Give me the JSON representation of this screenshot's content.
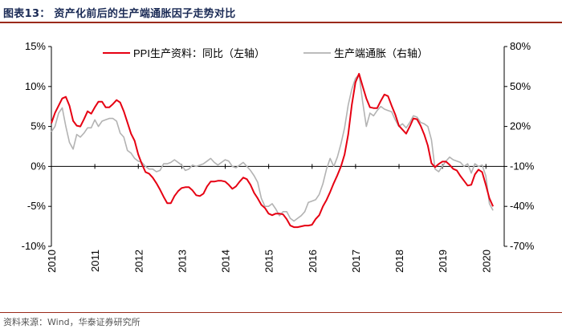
{
  "header": {
    "title": "图表13：  资产化前后的生产端通胀因子走势对比"
  },
  "footer": {
    "source": "资料来源：Wind，华泰证券研究所"
  },
  "colors": {
    "ppi": "#e60012",
    "factor": "#b3b3b3",
    "axis": "#000000",
    "title": "#1a2a55",
    "rule": "#9a2a1a"
  },
  "chart_data": {
    "type": "line",
    "title": "",
    "xlabel": "",
    "ylabel": "",
    "x_start": 2010.0,
    "x_step": 0.0833,
    "xlim": [
      2010.0,
      2020.42
    ],
    "x_ticks": [
      "2010",
      "2011",
      "2012",
      "2013",
      "2014",
      "2015",
      "2016",
      "2017",
      "2018",
      "2019",
      "2020"
    ],
    "left_axis": {
      "ylim": [
        -10,
        15
      ],
      "ticks": [
        "-10%",
        "-5%",
        "0%",
        "5%",
        "10%",
        "15%"
      ]
    },
    "right_axis": {
      "ylim": [
        -70,
        80
      ],
      "ticks": [
        "-70%",
        "-40%",
        "-10%",
        "20%",
        "50%",
        "80%"
      ]
    },
    "legend": "top-center",
    "series": [
      {
        "name": "PPI生产资料：同比（左轴）",
        "axis": "left",
        "values": [
          5.4,
          6.7,
          7.6,
          8.5,
          8.7,
          7.6,
          5.7,
          5.1,
          5.0,
          5.9,
          6.9,
          6.6,
          7.4,
          8.1,
          8.1,
          7.4,
          7.4,
          7.8,
          8.3,
          8.0,
          6.9,
          5.5,
          4.1,
          3.2,
          1.5,
          0.3,
          -0.7,
          -0.9,
          -1.4,
          -2.1,
          -2.9,
          -3.8,
          -4.6,
          -4.6,
          -3.7,
          -3.1,
          -2.7,
          -2.6,
          -2.6,
          -3.0,
          -3.6,
          -3.7,
          -3.4,
          -2.5,
          -1.9,
          -1.9,
          -1.8,
          -1.8,
          -1.9,
          -2.3,
          -2.8,
          -2.5,
          -1.9,
          -1.4,
          -1.6,
          -2.3,
          -3.3,
          -4.0,
          -4.8,
          -5.2,
          -5.9,
          -6.1,
          -5.9,
          -5.9,
          -6.0,
          -6.6,
          -7.4,
          -7.6,
          -7.6,
          -7.5,
          -7.4,
          -7.4,
          -7.3,
          -6.6,
          -6.1,
          -5.0,
          -4.2,
          -3.2,
          -2.1,
          -1.1,
          0.0,
          1.5,
          4.0,
          7.7,
          10.5,
          11.6,
          10.0,
          8.5,
          7.4,
          7.3,
          7.3,
          8.2,
          9.0,
          8.8,
          7.6,
          6.5,
          5.1,
          4.6,
          4.1,
          5.0,
          6.0,
          5.9,
          5.1,
          4.0,
          2.6,
          0.4,
          -0.1,
          0.3,
          0.6,
          0.6,
          0.2,
          -0.3,
          -0.5,
          -1.2,
          -1.8,
          -2.4,
          -2.3,
          -1.0,
          -0.4,
          -0.7,
          -2.3,
          -4.0,
          -5.0
        ]
      },
      {
        "name": "生产端通胀（右轴）",
        "axis": "right",
        "values": [
          16,
          20,
          30,
          34,
          20,
          8,
          3,
          14,
          12,
          15,
          19,
          19,
          25,
          20,
          24,
          25,
          26,
          26,
          24,
          15,
          12,
          2,
          0,
          -4,
          -6,
          -7,
          -10,
          -12,
          -12,
          -14,
          -13,
          -8,
          -8,
          -7,
          -5,
          -7,
          -9,
          -13,
          -12,
          -9,
          -10,
          -9,
          -8,
          -6,
          -4,
          -7,
          -9,
          -7,
          -5,
          -6,
          -10,
          -11,
          -9,
          -7,
          -10,
          -13,
          -17,
          -22,
          -34,
          -40,
          -40,
          -38,
          -42,
          -47,
          -44,
          -44,
          -49,
          -51,
          -49,
          -47,
          -44,
          -37,
          -36,
          -35,
          -31,
          -23,
          -12,
          -4,
          -10,
          -3,
          7,
          19,
          36,
          48,
          56,
          59,
          38,
          20,
          30,
          28,
          32,
          35,
          33,
          32,
          31,
          25,
          20,
          22,
          19,
          23,
          28,
          27,
          23,
          22,
          20,
          10,
          -12,
          -14,
          -10,
          -6,
          -3,
          -5,
          -6,
          -7,
          -10,
          -8,
          -15,
          -8,
          -10,
          -9,
          -17,
          -38,
          -43
        ]
      }
    ]
  }
}
